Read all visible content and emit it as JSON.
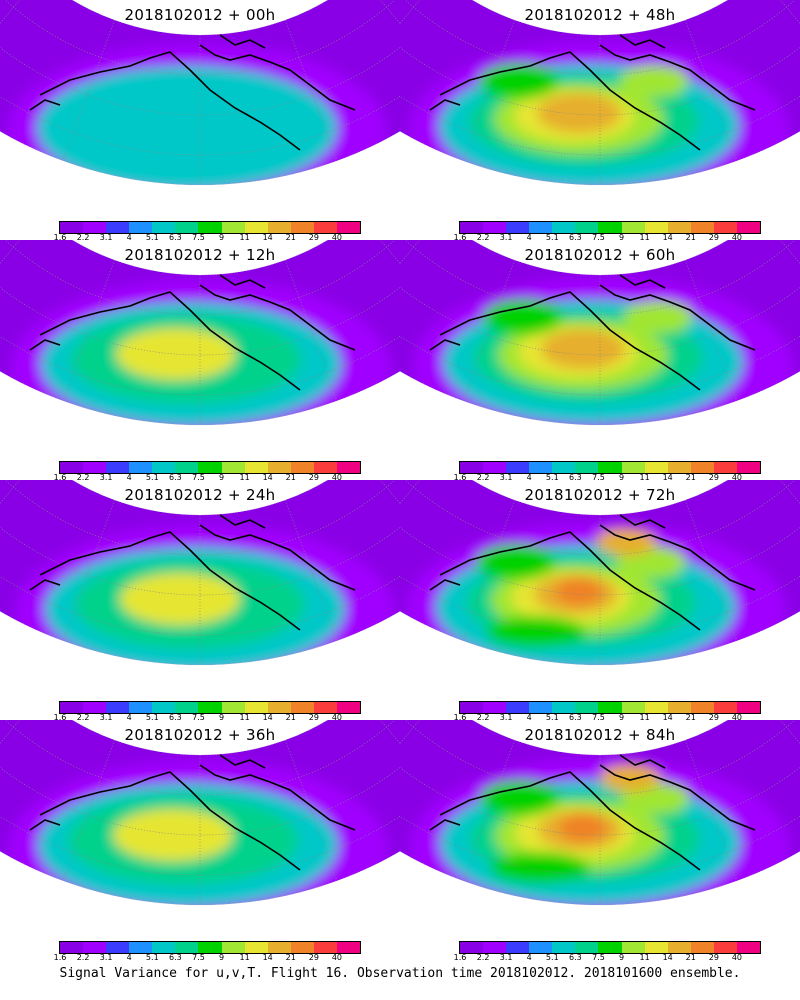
{
  "panels": [
    {
      "title": "2018102012 + 00h"
    },
    {
      "title": "2018102012 + 48h"
    },
    {
      "title": "2018102012 + 12h"
    },
    {
      "title": "2018102012 + 60h"
    },
    {
      "title": "2018102012 + 24h"
    },
    {
      "title": "2018102012 + 72h"
    },
    {
      "title": "2018102012 + 36h"
    },
    {
      "title": "2018102012 + 84h"
    }
  ],
  "colorbar": {
    "ticks": [
      "1.6",
      "2.2",
      "3.1",
      "4",
      "5.1",
      "6.3",
      "7.5",
      "9",
      "11",
      "14",
      "21",
      "29",
      "40"
    ],
    "colors": [
      "#8a00e6",
      "#a000ff",
      "#3c3cff",
      "#1e90ff",
      "#00c8c8",
      "#00d28c",
      "#00d200",
      "#a0e632",
      "#e6e632",
      "#e6af2d",
      "#f08228",
      "#fa3c3c",
      "#f00082"
    ]
  },
  "caption": "Signal Variance for u,v,T. Flight 16. Observation time 2018102012. 2018101600 ensemble."
}
